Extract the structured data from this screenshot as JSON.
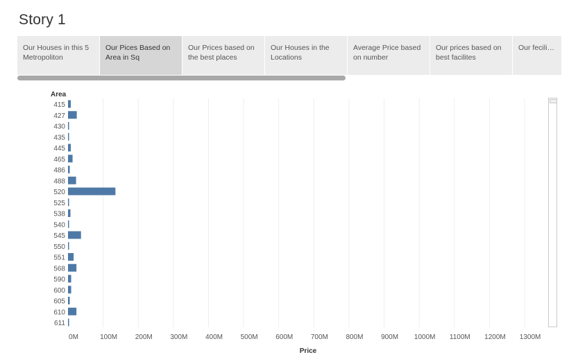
{
  "story": {
    "title": "Story 1"
  },
  "tabs": [
    {
      "label": "Our Houses in this 5 Metropoliton",
      "active": false
    },
    {
      "label": "Our Pices Based on Area in Sq",
      "active": true
    },
    {
      "label": "Our Prices based on the best places",
      "active": false
    },
    {
      "label": "Our Houses in the Locations",
      "active": false
    },
    {
      "label": "Average Price based on number",
      "active": false
    },
    {
      "label": "Our prices based on best facilites",
      "active": false
    },
    {
      "label": "Our fecilites in the best p...",
      "active": false
    }
  ],
  "colors": {
    "bar": "#4e79a7",
    "grid": "#eeeeee",
    "active_tab": "#d6d6d6",
    "tab": "#ececec"
  },
  "chart_data": {
    "type": "bar",
    "orientation": "horizontal",
    "ylabel": "Area",
    "xlabel": "Price",
    "categories": [
      "415",
      "427",
      "430",
      "435",
      "445",
      "465",
      "486",
      "488",
      "520",
      "525",
      "538",
      "540",
      "545",
      "550",
      "551",
      "568",
      "590",
      "600",
      "605",
      "610",
      "611"
    ],
    "values": [
      8000000,
      25000000,
      3000000,
      2000000,
      8000000,
      13000000,
      5000000,
      23000000,
      135000000,
      1500000,
      7000000,
      1000000,
      37000000,
      2500000,
      16000000,
      24000000,
      9000000,
      9000000,
      5000000,
      24000000,
      3000000
    ],
    "xlim": [
      0,
      1350000000
    ],
    "xticks": [
      0,
      100000000,
      200000000,
      300000000,
      400000000,
      500000000,
      600000000,
      700000000,
      800000000,
      900000000,
      1000000000,
      1100000000,
      1200000000,
      1300000000
    ],
    "xtick_labels": [
      "0M",
      "100M",
      "200M",
      "300M",
      "400M",
      "500M",
      "600M",
      "700M",
      "800M",
      "900M",
      "1000M",
      "1100M",
      "1200M",
      "1300M"
    ],
    "grid": true
  }
}
